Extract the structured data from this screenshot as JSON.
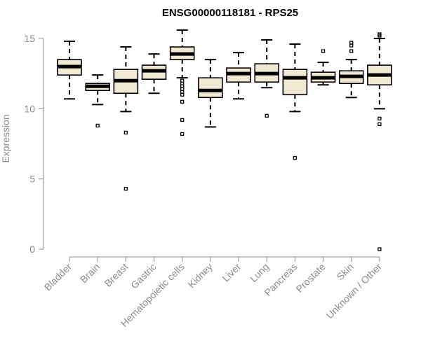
{
  "chart_data": {
    "type": "boxplot",
    "title": "ENSG00000118181 - RPS25",
    "ylabel": "Expression",
    "xlabel": "",
    "ylim": [
      0,
      15
    ],
    "yticks": [
      0,
      5,
      10,
      15
    ],
    "grid": false,
    "box_fill": "#efe8d2",
    "categories": [
      "Bladder",
      "Brain",
      "Breast",
      "Gastric",
      "Hematopoietic cells",
      "Kidney",
      "Liver",
      "Lung",
      "Pancreas",
      "Prostate",
      "Skin",
      "Unknown / Other"
    ],
    "boxes": [
      {
        "whisker_low": 10.7,
        "q1": 12.4,
        "median": 13.0,
        "q3": 13.5,
        "whisker_high": 14.8,
        "outliers": []
      },
      {
        "whisker_low": 10.3,
        "q1": 11.3,
        "median": 11.6,
        "q3": 11.8,
        "whisker_high": 12.4,
        "outliers": [
          8.8
        ]
      },
      {
        "whisker_low": 9.8,
        "q1": 11.1,
        "median": 12.0,
        "q3": 12.8,
        "whisker_high": 14.4,
        "outliers": [
          8.3,
          4.3
        ]
      },
      {
        "whisker_low": 11.1,
        "q1": 12.1,
        "median": 12.7,
        "q3": 13.1,
        "whisker_high": 13.9,
        "outliers": []
      },
      {
        "whisker_low": 12.2,
        "q1": 13.5,
        "median": 13.9,
        "q3": 14.4,
        "whisker_high": 15.6,
        "outliers": [
          12.0,
          11.8,
          11.6,
          11.4,
          11.2,
          11.0,
          10.5,
          9.2,
          8.2
        ]
      },
      {
        "whisker_low": 8.7,
        "q1": 10.8,
        "median": 11.3,
        "q3": 12.2,
        "whisker_high": 13.5,
        "outliers": []
      },
      {
        "whisker_low": 10.7,
        "q1": 11.9,
        "median": 12.5,
        "q3": 12.9,
        "whisker_high": 14.0,
        "outliers": []
      },
      {
        "whisker_low": 11.5,
        "q1": 11.9,
        "median": 12.5,
        "q3": 13.2,
        "whisker_high": 14.9,
        "outliers": [
          9.5
        ]
      },
      {
        "whisker_low": 9.8,
        "q1": 11.0,
        "median": 12.2,
        "q3": 12.8,
        "whisker_high": 14.6,
        "outliers": [
          6.5
        ]
      },
      {
        "whisker_low": 11.7,
        "q1": 11.9,
        "median": 12.2,
        "q3": 12.6,
        "whisker_high": 13.3,
        "outliers": [
          14.1
        ]
      },
      {
        "whisker_low": 10.8,
        "q1": 11.8,
        "median": 12.3,
        "q3": 12.7,
        "whisker_high": 13.5,
        "outliers": [
          14.1,
          14.5,
          14.7
        ]
      },
      {
        "whisker_low": 10.0,
        "q1": 11.7,
        "median": 12.4,
        "q3": 13.1,
        "whisker_high": 15.0,
        "outliers": [
          15.2,
          15.3,
          9.3,
          8.9,
          0.0
        ]
      }
    ]
  }
}
